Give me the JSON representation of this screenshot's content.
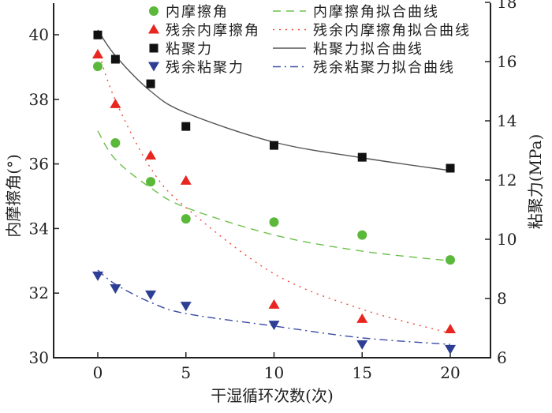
{
  "chart_data": {
    "type": "scatter",
    "xlabel": "干湿循环次数(次)",
    "ylabel_left": "内摩擦角(°)",
    "ylabel_right": "粘聚力(MPa)",
    "xlim": [
      -3.5,
      21.5
    ],
    "ylim_left": [
      30,
      40
    ],
    "ylim_right": [
      6,
      18
    ],
    "x_ticks": [
      "0",
      "5",
      "10",
      "15",
      "20"
    ],
    "y_ticks_left": [
      "30",
      "32",
      "34",
      "36",
      "38",
      "40"
    ],
    "y_ticks_right": [
      "6",
      "8",
      "10",
      "12",
      "14",
      "16",
      "18"
    ],
    "legend_position": "top",
    "x": [
      0,
      1,
      3,
      5,
      10,
      15,
      20
    ],
    "series": [
      {
        "name": "内摩擦角",
        "axis": "left",
        "marker": "circle",
        "color": "#5cb83a",
        "values": [
          39.02,
          36.65,
          35.45,
          34.3,
          34.2,
          33.8,
          33.03
        ]
      },
      {
        "name": "残余内摩擦角",
        "axis": "left",
        "marker": "triangle-up",
        "color": "#e8251f",
        "values": [
          39.39,
          37.85,
          36.26,
          35.48,
          31.64,
          31.2,
          30.88
        ]
      },
      {
        "name": "粘聚力",
        "axis": "right",
        "marker": "square",
        "color": "#111111",
        "values": [
          16.9,
          16.08,
          15.25,
          13.81,
          13.17,
          12.77,
          12.4
        ]
      },
      {
        "name": "残余粘聚力",
        "axis": "right",
        "marker": "triangle-down",
        "color": "#2d3f95",
        "values": [
          8.75,
          8.32,
          8.11,
          7.73,
          7.09,
          6.43,
          6.27
        ]
      }
    ],
    "fits": [
      {
        "name": "内摩擦角拟合曲线",
        "axis": "left",
        "style": "dashed",
        "color": "#6cc04a",
        "x": [
          0,
          1,
          3,
          5,
          10,
          15,
          20
        ],
        "values": [
          37.02,
          36.14,
          35.26,
          34.65,
          33.8,
          33.3,
          33.0
        ]
      },
      {
        "name": "残余内摩擦角拟合曲线",
        "axis": "left",
        "style": "dotted",
        "color": "#f04a3a",
        "x": [
          0,
          1,
          3,
          5,
          10,
          15,
          20
        ],
        "values": [
          39.54,
          37.97,
          35.87,
          34.65,
          32.6,
          31.5,
          30.76
        ]
      },
      {
        "name": "粘聚力拟合曲线",
        "axis": "right",
        "style": "solid",
        "color": "#555555",
        "x": [
          0,
          1,
          3,
          5,
          10,
          15,
          20
        ],
        "values": [
          17.07,
          16.2,
          15.0,
          14.27,
          13.28,
          12.75,
          12.32
        ]
      },
      {
        "name": "残余粘聚力拟合曲线",
        "axis": "right",
        "style": "dashdot",
        "color": "#3a4aa5",
        "x": [
          0,
          1,
          3,
          5,
          10,
          15,
          20
        ],
        "values": [
          8.96,
          8.48,
          7.87,
          7.49,
          7.07,
          6.67,
          6.45
        ]
      }
    ]
  }
}
